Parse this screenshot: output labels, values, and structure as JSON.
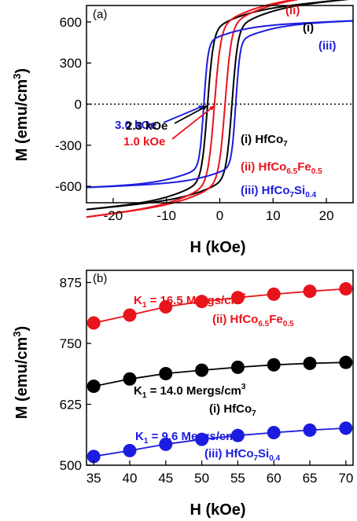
{
  "colors": {
    "black": "#000000",
    "red": "#e8141b",
    "blue": "#1c1ce0"
  },
  "chart_data": [
    {
      "panel": "(a)",
      "type": "line",
      "xlabel": "H (kOe)",
      "ylabel_main": "M (emu/cm",
      "ylabel_sup": "3",
      "ylabel_end": ")",
      "xlim": [
        -25,
        25
      ],
      "ylim": [
        -720,
        720
      ],
      "xticks": [
        -20,
        -10,
        0,
        10,
        20
      ],
      "xtick_labels": [
        "-20",
        "-10",
        "0",
        "10",
        "20"
      ],
      "yticks": [
        -600,
        -300,
        0,
        300,
        600
      ],
      "ytick_labels": [
        "-600",
        "-300",
        "0",
        "300",
        "600"
      ],
      "zero_line": "dotted",
      "series": [
        {
          "name": "(i) HfCo7",
          "color": "#000000",
          "Ms": 540,
          "a": 2.0,
          "Hc": 2.3,
          "w": 1.1,
          "slope": 3.8,
          "curve_label": "(i)",
          "legend_parts": [
            [
              "(i) HfCo",
              ""
            ],
            [
              "7",
              "sub"
            ]
          ]
        },
        {
          "name": "(ii) HfCo6.5Fe0.5",
          "color": "#e8141b",
          "Ms": 560,
          "a": 2.0,
          "Hc": 1.0,
          "w": 1.2,
          "slope": 5.0,
          "curve_label": "(ii)",
          "legend_parts": [
            [
              "(ii) HfCo",
              ""
            ],
            [
              "6.5",
              "sub"
            ],
            [
              "Fe",
              ""
            ],
            [
              "0.5",
              "sub"
            ]
          ]
        },
        {
          "name": "(iii) HfCo7Si0.4",
          "color": "#1c1ce0",
          "Ms": 455,
          "a": 1.0,
          "Hc": 3.0,
          "w": 0.8,
          "slope": 1.6,
          "curve_label": "(iii)",
          "legend_parts": [
            [
              "(iii) HfCo",
              ""
            ],
            [
              "7",
              "sub"
            ],
            [
              "Si",
              ""
            ],
            [
              "0.4",
              "sub"
            ]
          ]
        }
      ],
      "coercivity_labels": [
        {
          "text": "3.0 kOe",
          "color": "#1c1ce0",
          "Hc": 3.0
        },
        {
          "text": "2.3 kOe",
          "color": "#000000",
          "Hc": 2.3
        },
        {
          "text": "1.0 kOe",
          "color": "#e8141b",
          "Hc": 1.0
        }
      ]
    },
    {
      "panel": "(b)",
      "type": "scatter",
      "xlabel": "H (kOe)",
      "ylabel_main": "M (emu/cm",
      "ylabel_sup": "3",
      "ylabel_end": ")",
      "xlim": [
        34,
        71
      ],
      "ylim": [
        500,
        900
      ],
      "xticks": [
        35,
        40,
        45,
        50,
        55,
        60,
        65,
        70
      ],
      "xtick_labels": [
        "35",
        "40",
        "45",
        "50",
        "55",
        "60",
        "65",
        "70"
      ],
      "yticks": [
        500,
        625,
        750,
        875
      ],
      "ytick_labels": [
        "500",
        "625",
        "750",
        "875"
      ],
      "x": [
        35,
        40,
        45,
        50,
        55,
        60,
        65,
        70
      ],
      "series": [
        {
          "name": "(ii) HfCo6.5Fe0.5",
          "color": "#e8141b",
          "values": [
            792,
            808,
            825,
            836,
            844,
            851,
            857,
            862
          ],
          "k_label": [
            "K",
            "1",
            " = 16.5 Mergs/cm",
            "3"
          ],
          "legend_parts": [
            [
              "(ii) HfCo",
              ""
            ],
            [
              "6.5",
              "sub"
            ],
            [
              "Fe",
              ""
            ],
            [
              "0.5",
              "sub"
            ]
          ]
        },
        {
          "name": "(i) HfCo7",
          "color": "#000000",
          "values": [
            662,
            677,
            688,
            695,
            701,
            706,
            709,
            711
          ],
          "k_label": [
            "K",
            "1",
            " = 14.0 Mergs/cm",
            "3"
          ],
          "legend_parts": [
            [
              "(i) HfCo",
              ""
            ],
            [
              "7",
              "sub"
            ]
          ]
        },
        {
          "name": "(iii) HfCo7Si0.4",
          "color": "#1c1ce0",
          "values": [
            518,
            530,
            543,
            553,
            561,
            567,
            572,
            576
          ],
          "k_label": [
            "K",
            "1",
            " = 9.6 Mergs/cm",
            "3"
          ],
          "legend_parts": [
            [
              "(iii) HfCo",
              ""
            ],
            [
              "7",
              "sub"
            ],
            [
              "Si",
              ""
            ],
            [
              "0.4",
              "sub"
            ]
          ]
        }
      ]
    }
  ]
}
